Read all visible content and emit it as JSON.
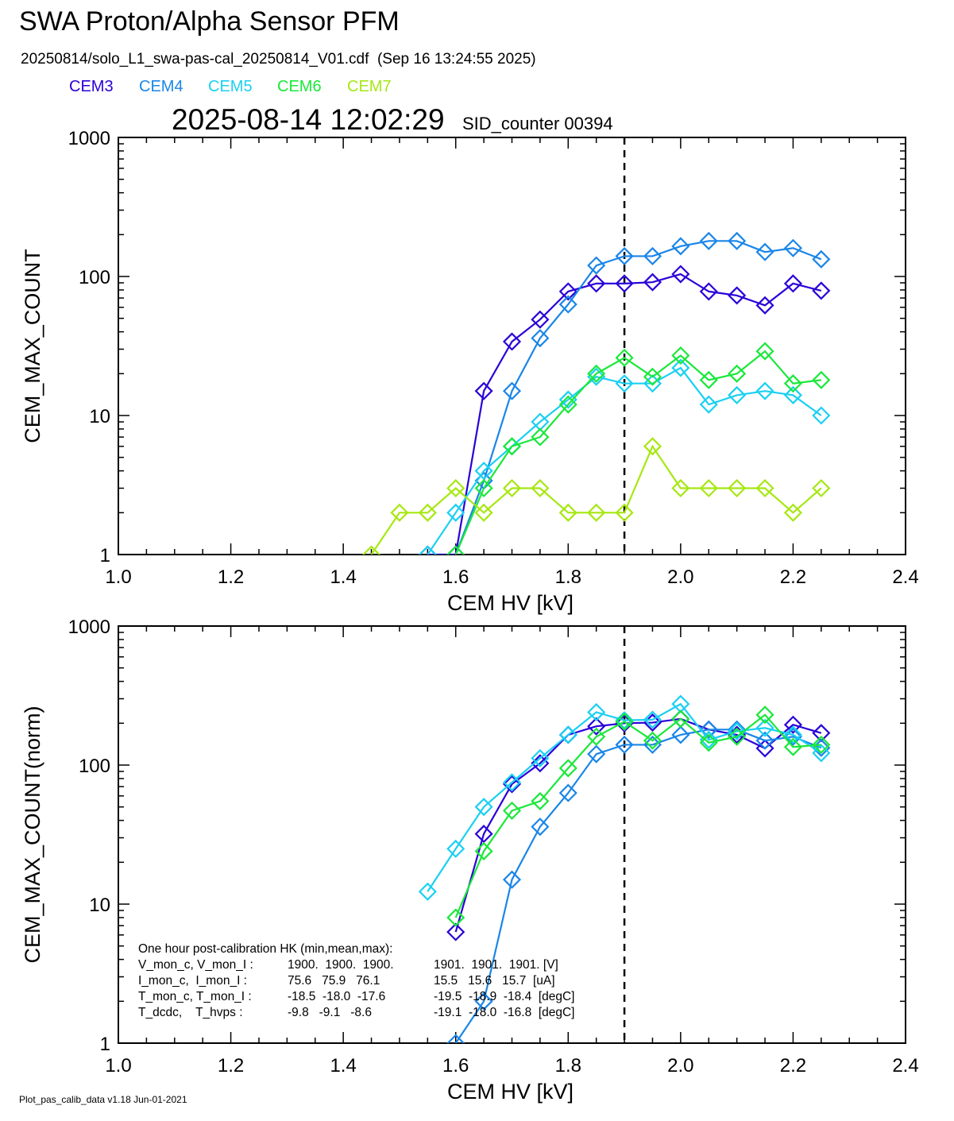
{
  "title": "SWA Proton/Alpha Sensor PFM",
  "file_line": "20250814/solo_L1_swa-pas-cal_20250814_V01.cdf  (Sep 16 13:24:55 2025)",
  "legend": [
    {
      "label": "CEM3",
      "color": "#2a00d8"
    },
    {
      "label": "CEM4",
      "color": "#1a86e8"
    },
    {
      "label": "CEM5",
      "color": "#1ad0f2"
    },
    {
      "label": "CEM6",
      "color": "#1ae83a"
    },
    {
      "label": "CEM7",
      "color": "#a6e810"
    }
  ],
  "timestamp": "2025-08-14 12:02:29",
  "sid_label": "SID_counter 00394",
  "footer": "Plot_pas_calib_data v1.18 Jun-01-2021",
  "hk_box": {
    "lines": [
      [
        "One hour post-calibration HK (min,mean,max):"
      ],
      [
        "V_mon_c, V_mon_I :",
        "1900.  1900.  1900.",
        "1901.  1901.  1901. [V]"
      ],
      [
        "I_mon_c,  I_mon_I :",
        "75.6   75.9   76.1",
        "15.5   15.6   15.7  [uA]"
      ],
      [
        "T_mon_c, T_mon_I :",
        "-18.5  -18.0  -17.6",
        "-19.5  -18.9  -18.4  [degC]"
      ],
      [
        "T_dcdc,    T_hvps :",
        "-9.8   -9.1   -8.6",
        "-19.1  -18.0  -16.8  [degC]"
      ]
    ]
  },
  "chart_data": [
    {
      "type": "line",
      "title": "",
      "xlabel": "CEM HV [kV]",
      "ylabel": "CEM_MAX_COUNT",
      "xlim": [
        1.0,
        2.4
      ],
      "ylim": [
        1,
        1000
      ],
      "yscale": "log",
      "x_ticks": [
        "1.0",
        "1.2",
        "1.4",
        "1.6",
        "1.8",
        "2.0",
        "2.2",
        "2.4"
      ],
      "y_ticks": [
        "1",
        "10",
        "100",
        "1000"
      ],
      "vline_x": 1.9,
      "series": [
        {
          "name": "CEM3",
          "color": "#2a00d8",
          "x": [
            1.55,
            1.6,
            1.65,
            1.7,
            1.75,
            1.8,
            1.85,
            1.9,
            1.95,
            2.0,
            2.05,
            2.1,
            2.15,
            2.2,
            2.25
          ],
          "y": [
            1,
            1,
            15,
            34,
            49,
            78,
            89,
            89,
            91,
            104,
            78,
            73,
            62,
            89,
            79
          ]
        },
        {
          "name": "CEM4",
          "color": "#1a86e8",
          "x": [
            1.6,
            1.65,
            1.7,
            1.75,
            1.8,
            1.85,
            1.9,
            1.95,
            2.0,
            2.05,
            2.1,
            2.15,
            2.2,
            2.25
          ],
          "y": [
            1,
            3.4,
            15,
            36,
            63,
            120,
            140,
            140,
            165,
            180,
            180,
            150,
            160,
            133
          ]
        },
        {
          "name": "CEM5",
          "color": "#1ad0f2",
          "x": [
            1.55,
            1.6,
            1.65,
            1.7,
            1.75,
            1.8,
            1.85,
            1.9,
            1.95,
            2.0,
            2.05,
            2.1,
            2.15,
            2.2,
            2.25
          ],
          "y": [
            1,
            2,
            4,
            6,
            9,
            13,
            19,
            17,
            17,
            22,
            12,
            14,
            15,
            14,
            10
          ]
        },
        {
          "name": "CEM6",
          "color": "#1ae83a",
          "x": [
            1.6,
            1.65,
            1.7,
            1.75,
            1.8,
            1.85,
            1.9,
            1.95,
            2.0,
            2.05,
            2.1,
            2.15,
            2.2,
            2.25
          ],
          "y": [
            1,
            3,
            6,
            7,
            12,
            20,
            26,
            19,
            27,
            18,
            20,
            29,
            17,
            18
          ]
        },
        {
          "name": "CEM7",
          "color": "#a6e810",
          "x": [
            1.45,
            1.5,
            1.55,
            1.6,
            1.65,
            1.7,
            1.75,
            1.8,
            1.85,
            1.9,
            1.95,
            2.0,
            2.05,
            2.1,
            2.15,
            2.2,
            2.25
          ],
          "y": [
            1,
            2,
            2,
            3,
            2,
            3,
            3,
            2,
            2,
            2,
            6,
            3,
            3,
            3,
            3,
            2,
            3
          ]
        }
      ]
    },
    {
      "type": "line",
      "title": "",
      "xlabel": "CEM HV [kV]",
      "ylabel": "CEM_MAX_COUNT(norm)",
      "xlim": [
        1.0,
        2.4
      ],
      "ylim": [
        1,
        1000
      ],
      "yscale": "log",
      "x_ticks": [
        "1.0",
        "1.2",
        "1.4",
        "1.6",
        "1.8",
        "2.0",
        "2.2",
        "2.4"
      ],
      "y_ticks": [
        "1",
        "10",
        "100",
        "1000"
      ],
      "vline_x": 1.9,
      "series": [
        {
          "name": "CEM3",
          "color": "#2a00d8",
          "x": [
            1.6,
            1.65,
            1.7,
            1.75,
            1.8,
            1.85,
            1.9,
            1.95,
            2.0,
            2.05,
            2.1,
            2.15,
            2.2,
            2.25
          ],
          "y": [
            6.3,
            32,
            73,
            103,
            165,
            190,
            200,
            202,
            215,
            180,
            165,
            132,
            195,
            170
          ]
        },
        {
          "name": "CEM4",
          "color": "#1a86e8",
          "x": [
            1.6,
            1.65,
            1.7,
            1.75,
            1.8,
            1.85,
            1.9,
            1.95,
            2.0,
            2.05,
            2.1,
            2.15,
            2.2,
            2.25
          ],
          "y": [
            1,
            2,
            15,
            36,
            63,
            120,
            140,
            140,
            165,
            180,
            180,
            150,
            160,
            133
          ]
        },
        {
          "name": "CEM5",
          "color": "#1ad0f2",
          "x": [
            1.55,
            1.6,
            1.65,
            1.7,
            1.75,
            1.8,
            1.85,
            1.9,
            1.95,
            2.0,
            2.05,
            2.1,
            2.15,
            2.2,
            2.25
          ],
          "y": [
            12.3,
            25,
            50,
            75,
            112,
            165,
            240,
            210,
            212,
            275,
            152,
            175,
            185,
            165,
            122
          ]
        },
        {
          "name": "CEM6",
          "color": "#1ae83a",
          "x": [
            1.6,
            1.65,
            1.7,
            1.75,
            1.8,
            1.85,
            1.9,
            1.95,
            2.0,
            2.05,
            2.1,
            2.15,
            2.2,
            2.25
          ],
          "y": [
            8,
            24,
            47,
            55,
            95,
            160,
            205,
            150,
            215,
            145,
            160,
            230,
            135,
            140
          ]
        }
      ]
    }
  ]
}
